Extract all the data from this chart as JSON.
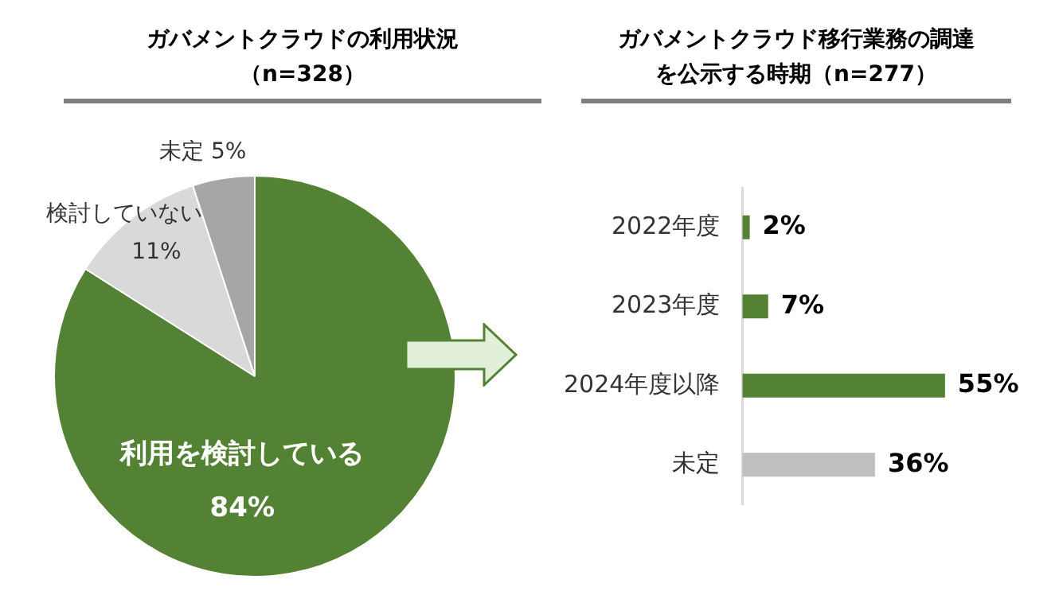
{
  "chart_data": [
    {
      "type": "pie",
      "title": "ガバメントクラウドの利用状況（n=328）",
      "categories": [
        "利用を検討している",
        "検討していない",
        "未定"
      ],
      "values": [
        84,
        11,
        5
      ],
      "colors": [
        "#548235",
        "#d9d9d9",
        "#a6a6a6"
      ],
      "value_labels": [
        "84%",
        "11%",
        "5%"
      ]
    },
    {
      "type": "bar",
      "orientation": "horizontal",
      "title": "ガバメントクラウド移行業務の調達を公示する時期（n=277）",
      "categories": [
        "2022年度",
        "2023年度",
        "2024年度以降",
        "未定"
      ],
      "values": [
        2,
        7,
        55,
        36
      ],
      "colors": [
        "#548235",
        "#548235",
        "#548235",
        "#bfbfbf"
      ],
      "value_labels": [
        "2%",
        "7%",
        "55%",
        "36%"
      ]
    }
  ]
}
